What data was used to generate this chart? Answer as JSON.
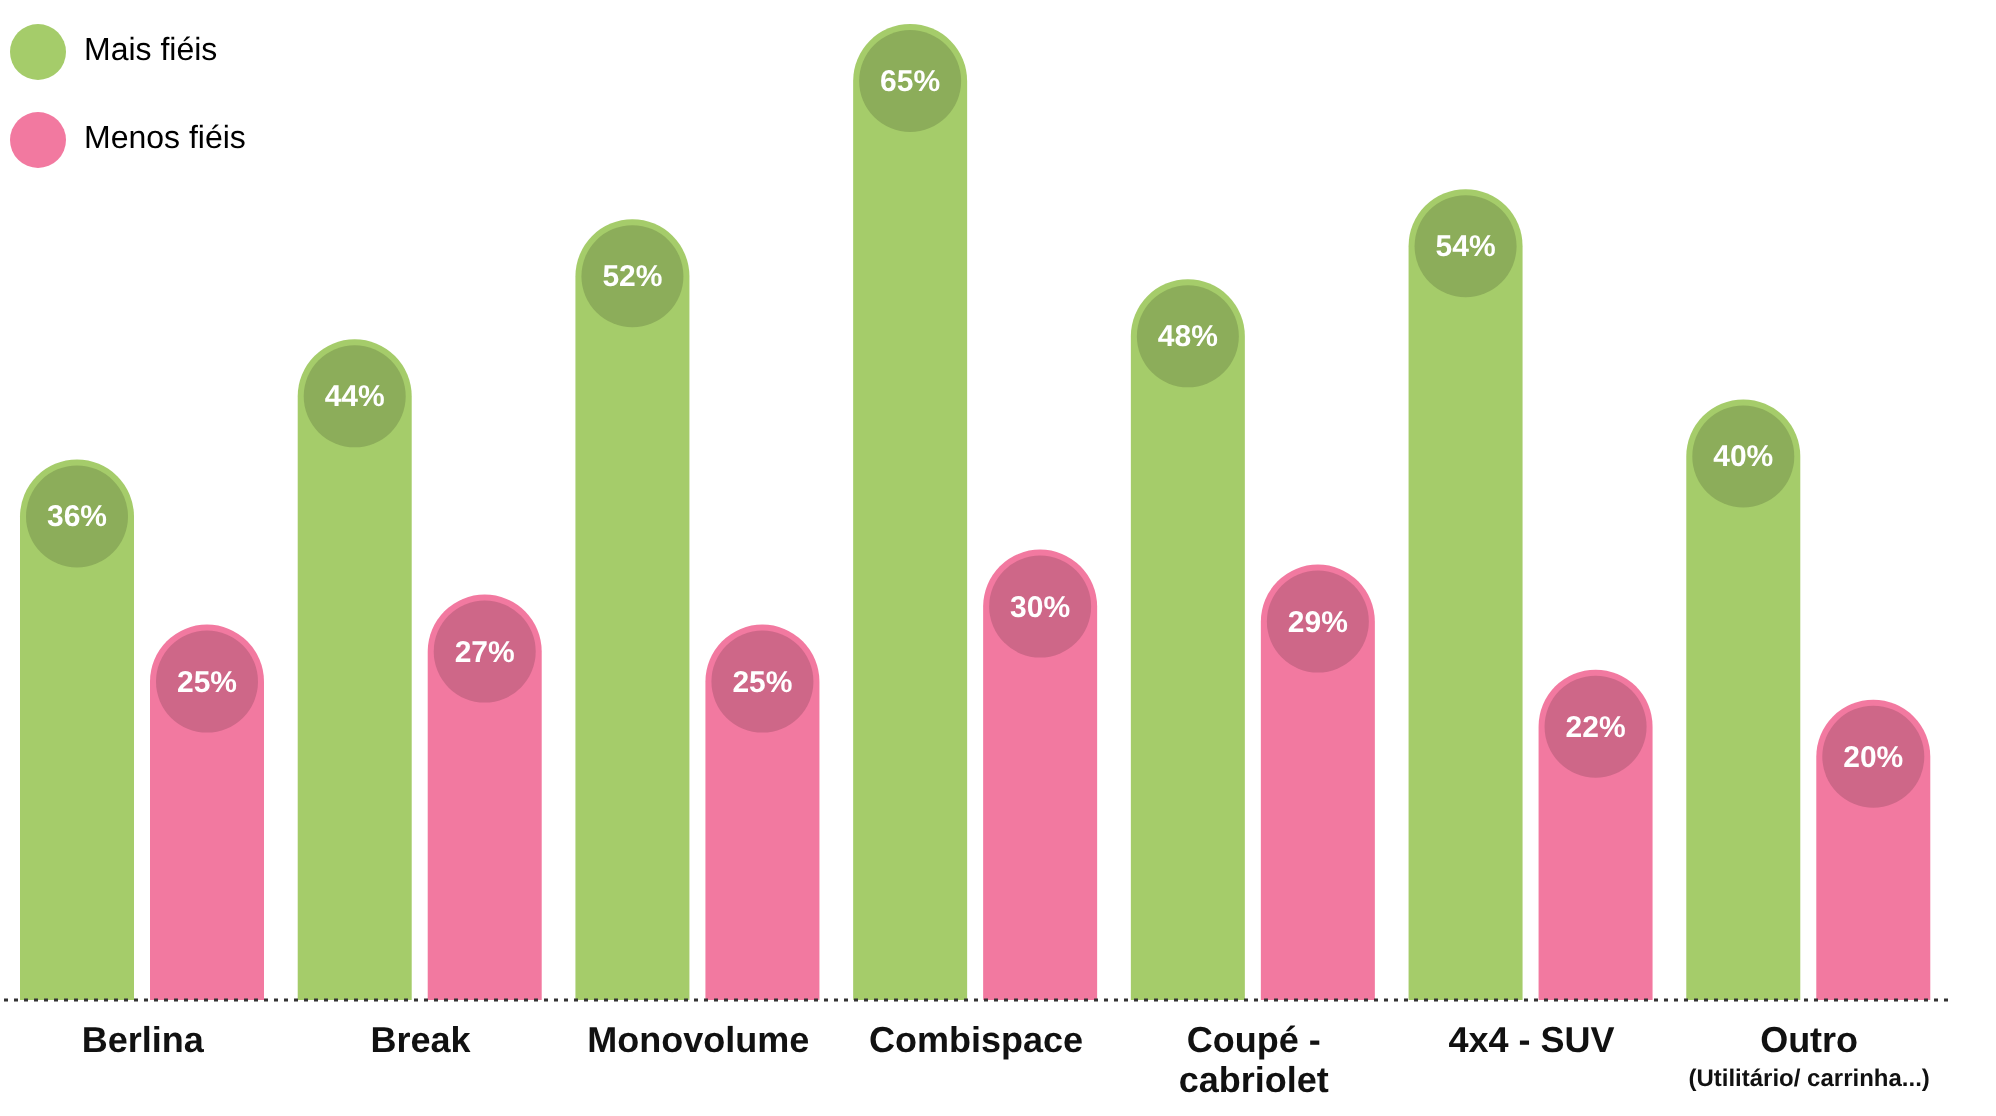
{
  "chart_data": {
    "type": "bar",
    "categories": [
      "Berlina",
      "Break",
      "Monovolume",
      "Combispace",
      "Coupé -\ncabriolet",
      "4x4 - SUV",
      "Outro\n(Utilitário/ carrinha...)"
    ],
    "series": [
      {
        "name": "Mais fiéis",
        "color": "#a5cc6a",
        "values": [
          36,
          44,
          52,
          65,
          48,
          54,
          40
        ],
        "value_labels": [
          "36%",
          "44%",
          "52%",
          "65%",
          "48%",
          "54%",
          "40%"
        ]
      },
      {
        "name": "Menos fiéis",
        "color": "#f279a0",
        "values": [
          25,
          27,
          25,
          30,
          29,
          22,
          20
        ],
        "value_labels": [
          "25%",
          "27%",
          "25%",
          "30%",
          "29%",
          "22%",
          "20%"
        ]
      }
    ],
    "legend": "top left"
  }
}
